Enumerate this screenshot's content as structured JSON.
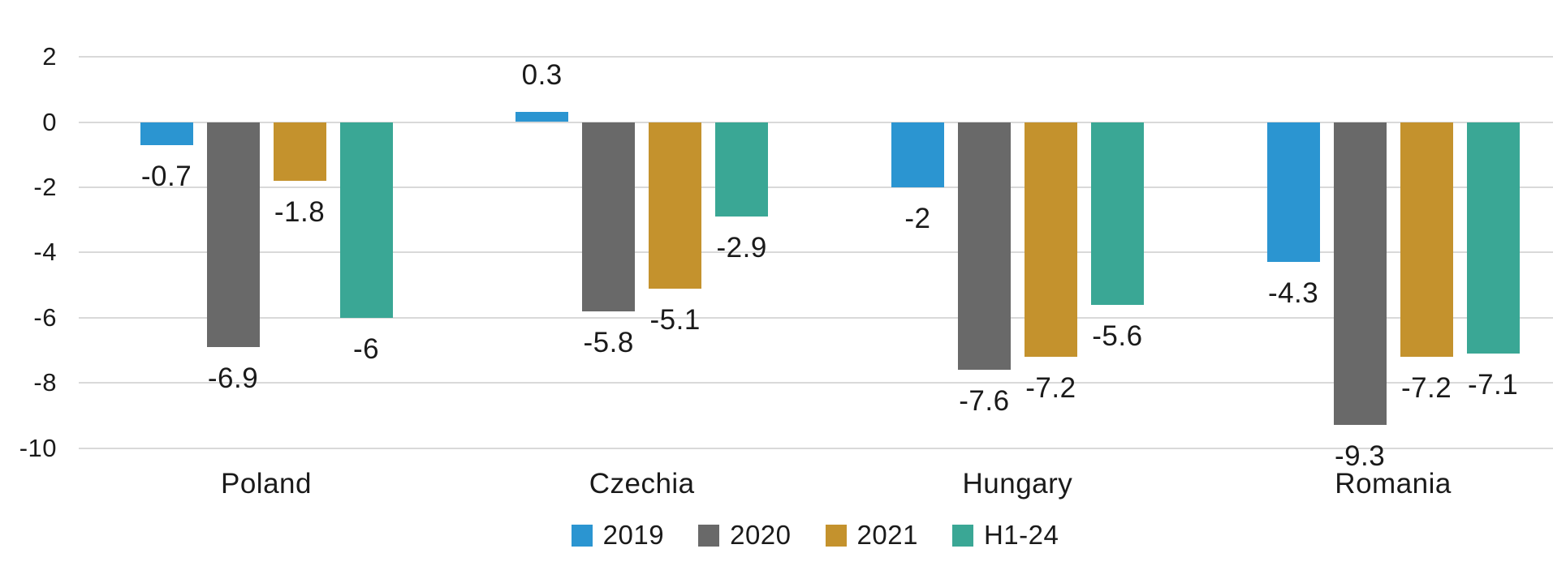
{
  "chart_data": {
    "type": "bar",
    "title": "",
    "categories": [
      "Poland",
      "Czechia",
      "Hungary",
      "Romania"
    ],
    "series": [
      {
        "name": "2019",
        "color": "#2B95D1",
        "values": [
          -0.7,
          0.3,
          -2,
          -4.3
        ],
        "labels": [
          "-0.7",
          "0.3",
          "-2",
          "-4.3"
        ]
      },
      {
        "name": "2020",
        "color": "#696969",
        "values": [
          -6.9,
          -5.8,
          -7.6,
          -9.3
        ],
        "labels": [
          "-6.9",
          "-5.8",
          "-7.6",
          "-9.3"
        ]
      },
      {
        "name": "2021",
        "color": "#C4922D",
        "values": [
          -1.8,
          -5.1,
          -7.2,
          -7.2
        ],
        "labels": [
          "-1.8",
          "-5.1",
          "-7.2",
          "-7.2"
        ]
      },
      {
        "name": "H1-24",
        "color": "#3AA795",
        "values": [
          -6,
          -2.9,
          -5.6,
          -7.1
        ],
        "labels": [
          "-6",
          "-2.9",
          "-5.6",
          "-7.1"
        ]
      }
    ],
    "y_axis": {
      "ticks": [
        2,
        0,
        -2,
        -4,
        -6,
        -8,
        -10
      ],
      "tick_labels": [
        "2",
        "0",
        "-2",
        "-4",
        "-6",
        "-8",
        "-10"
      ],
      "ylim": [
        -10,
        2
      ],
      "grid": true,
      "gridline_color": "#D9D9D9"
    },
    "legend": {
      "position": "bottom",
      "entries": [
        "2019",
        "2020",
        "2021",
        "H1-24"
      ]
    },
    "value_labels": true,
    "text_color": "#1A1A1A",
    "background": "#FFFFFF"
  }
}
